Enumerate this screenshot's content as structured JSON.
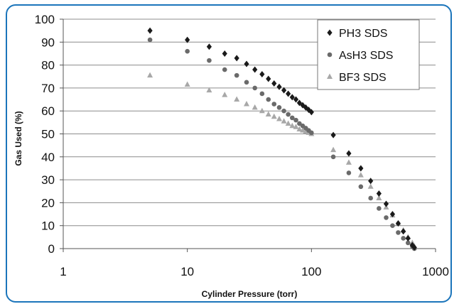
{
  "chart_data": {
    "type": "scatter",
    "xlabel": "Cylinder Pressure (torr)",
    "ylabel": "Gas Used (%)",
    "x_scale": "log",
    "xlim": [
      1,
      1000
    ],
    "ylim": [
      0,
      100
    ],
    "x_ticks": [
      "1",
      "10",
      "100",
      "1000"
    ],
    "y_ticks": [
      "0",
      "10",
      "20",
      "30",
      "40",
      "50",
      "60",
      "70",
      "80",
      "90",
      "100"
    ],
    "grid": "horizontal",
    "legend_position": "top-right",
    "series": [
      {
        "name": "PH3 SDS",
        "marker": "diamond",
        "color": "#1a1a1a",
        "points": [
          [
            5,
            95
          ],
          [
            10,
            91
          ],
          [
            15,
            88
          ],
          [
            20,
            85
          ],
          [
            25,
            83
          ],
          [
            30,
            80.5
          ],
          [
            35,
            78
          ],
          [
            40,
            76
          ],
          [
            45,
            74
          ],
          [
            50,
            72
          ],
          [
            55,
            70.5
          ],
          [
            60,
            69
          ],
          [
            65,
            67.5
          ],
          [
            70,
            66
          ],
          [
            75,
            65
          ],
          [
            80,
            63.5
          ],
          [
            85,
            62.5
          ],
          [
            90,
            61.5
          ],
          [
            95,
            60.5
          ],
          [
            100,
            59.5
          ],
          [
            150,
            49.5
          ],
          [
            200,
            41.5
          ],
          [
            250,
            35
          ],
          [
            300,
            29.5
          ],
          [
            350,
            24
          ],
          [
            400,
            19.5
          ],
          [
            450,
            15
          ],
          [
            500,
            11
          ],
          [
            550,
            7.5
          ],
          [
            600,
            4.5
          ],
          [
            650,
            1.5
          ],
          [
            675,
            0.5
          ]
        ]
      },
      {
        "name": "AsH3 SDS",
        "marker": "circle",
        "color": "#6a6a6a",
        "points": [
          [
            5,
            91
          ],
          [
            10,
            86
          ],
          [
            15,
            82
          ],
          [
            20,
            78
          ],
          [
            25,
            75.5
          ],
          [
            30,
            72.5
          ],
          [
            35,
            70
          ],
          [
            40,
            67.5
          ],
          [
            45,
            65
          ],
          [
            50,
            63
          ],
          [
            55,
            61.5
          ],
          [
            60,
            60
          ],
          [
            65,
            58.5
          ],
          [
            70,
            57
          ],
          [
            75,
            56
          ],
          [
            80,
            54.5
          ],
          [
            85,
            53.5
          ],
          [
            90,
            52.5
          ],
          [
            95,
            51.5
          ],
          [
            100,
            50.5
          ],
          [
            150,
            40
          ],
          [
            200,
            33
          ],
          [
            250,
            27
          ],
          [
            300,
            22
          ],
          [
            350,
            17.5
          ],
          [
            400,
            13.5
          ],
          [
            450,
            10
          ],
          [
            500,
            7
          ],
          [
            550,
            4.5
          ],
          [
            600,
            2.5
          ],
          [
            650,
            1
          ],
          [
            675,
            0
          ]
        ]
      },
      {
        "name": "BF3 SDS",
        "marker": "triangle",
        "color": "#a8a8a8",
        "points": [
          [
            5,
            75.5
          ],
          [
            10,
            71.5
          ],
          [
            15,
            69
          ],
          [
            20,
            67
          ],
          [
            25,
            65
          ],
          [
            30,
            63
          ],
          [
            35,
            61.5
          ],
          [
            40,
            60
          ],
          [
            45,
            58.5
          ],
          [
            50,
            57.5
          ],
          [
            55,
            56.5
          ],
          [
            60,
            55.5
          ],
          [
            65,
            54.5
          ],
          [
            70,
            53.5
          ],
          [
            75,
            53
          ],
          [
            80,
            52
          ],
          [
            85,
            51.5
          ],
          [
            90,
            51
          ],
          [
            95,
            50.5
          ],
          [
            100,
            50
          ],
          [
            150,
            43
          ],
          [
            200,
            37.5
          ],
          [
            250,
            32
          ],
          [
            300,
            27
          ],
          [
            350,
            22
          ],
          [
            400,
            18
          ],
          [
            450,
            14.5
          ],
          [
            500,
            11
          ],
          [
            550,
            8
          ],
          [
            600,
            5
          ],
          [
            650,
            2.5
          ],
          [
            675,
            1
          ]
        ]
      }
    ]
  }
}
